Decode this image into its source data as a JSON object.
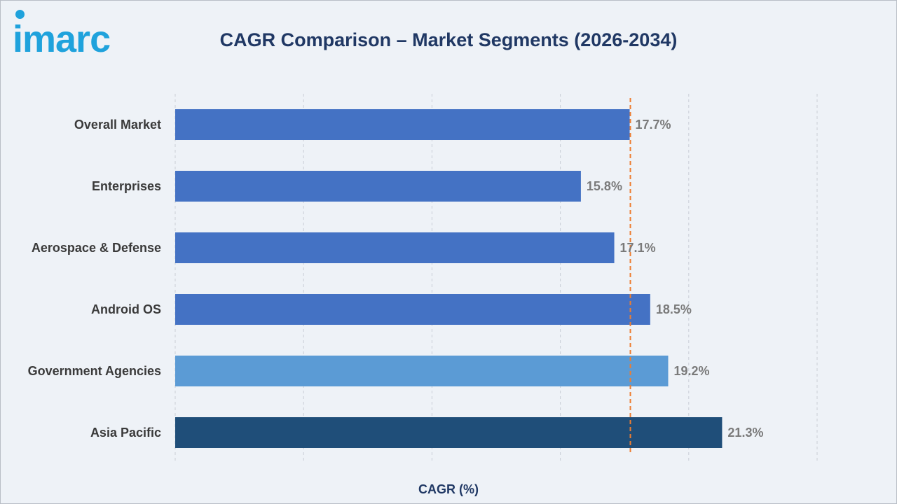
{
  "brand": {
    "logo_text": "imarc",
    "color": "#1fa2dc"
  },
  "chart_data": {
    "type": "bar",
    "orientation": "horizontal",
    "title": "CAGR Comparison – Market Segments (2026-2034)",
    "xlabel": "CAGR (%)",
    "ylabel": "",
    "xlim": [
      0,
      25
    ],
    "grid": "vertical-dashed",
    "categories": [
      "Overall Market",
      "Enterprises",
      "Aerospace & Defense",
      "Android OS",
      "Government Agencies",
      "Asia Pacific"
    ],
    "values": [
      17.7,
      15.8,
      17.1,
      18.5,
      19.2,
      21.3
    ],
    "value_labels": [
      "17.7%",
      "15.8%",
      "17.1%",
      "18.5%",
      "19.2%",
      "21.3%"
    ],
    "bar_colors": [
      "#4472c4",
      "#4472c4",
      "#4472c4",
      "#4472c4",
      "#5b9bd5",
      "#1f4e79"
    ],
    "reference_line": {
      "value": 17.7,
      "style": "dashed",
      "color": "#ed7d31"
    }
  }
}
